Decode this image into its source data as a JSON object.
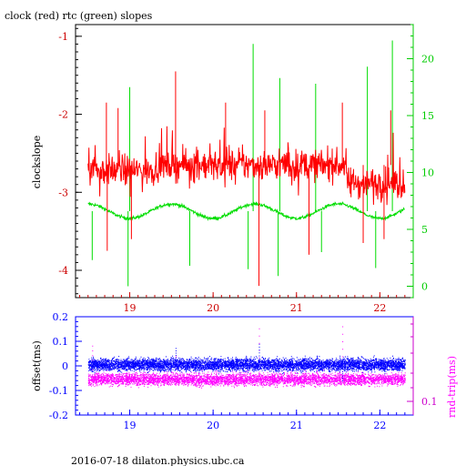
{
  "chart_data": [
    {
      "type": "line",
      "title": "clock (red) rtc (green) slopes",
      "ylabel": "clockslope",
      "y2label": "",
      "xlim": [
        18.35,
        22.4
      ],
      "ylim": [
        -4.35,
        -0.85
      ],
      "y2lim": [
        -1.0,
        23.0
      ],
      "x_ticks": [
        "19",
        "20",
        "21",
        "22"
      ],
      "x_tick_values": [
        19,
        20,
        21,
        22
      ],
      "y_ticks": [
        "-1",
        "-2",
        "-3",
        "-4"
      ],
      "y_tick_values": [
        -1,
        -2,
        -3,
        -4
      ],
      "y2_ticks": [
        "20",
        "15",
        "10",
        "5",
        "0"
      ],
      "y2_tick_values": [
        20,
        15,
        10,
        5,
        0
      ],
      "grid": false,
      "colors": {
        "clock": "#ff0000",
        "rtc": "#00dd00",
        "axis_left": "#000000",
        "axis_bottom": "#cc0000",
        "axis_right": "#00cc00"
      },
      "series": [
        {
          "key": "clock",
          "x_range": [
            18.5,
            22.3
          ],
          "samples": 760,
          "center": -2.65,
          "noise": 0.33,
          "spikes_up": [
            [
              18.72,
              -1.85
            ],
            [
              18.86,
              -1.92
            ],
            [
              19.55,
              -1.45
            ],
            [
              20.15,
              -1.85
            ],
            [
              20.62,
              -1.95
            ],
            [
              21.55,
              -1.85
            ],
            [
              22.13,
              -1.95
            ]
          ],
          "spikes_down": [
            [
              18.73,
              -3.75
            ],
            [
              19.02,
              -3.6
            ],
            [
              20.55,
              -4.2
            ],
            [
              21.15,
              -3.8
            ],
            [
              21.8,
              -3.65
            ],
            [
              22.05,
              -3.6
            ]
          ]
        },
        {
          "key": "rtc",
          "x_range": [
            18.5,
            22.3
          ],
          "samples": 760,
          "baseline": 6.6,
          "spikes_up": [
            [
              19.0,
              17.5
            ],
            [
              20.48,
              21.3
            ],
            [
              20.8,
              18.3
            ],
            [
              21.23,
              17.8
            ],
            [
              21.85,
              19.3
            ],
            [
              22.15,
              21.6
            ]
          ],
          "spikes_down": [
            [
              18.55,
              2.3
            ],
            [
              18.98,
              0.0
            ],
            [
              19.72,
              1.8
            ],
            [
              20.42,
              1.5
            ],
            [
              20.78,
              0.9
            ],
            [
              21.3,
              3.0
            ],
            [
              21.95,
              1.6
            ]
          ]
        }
      ]
    },
    {
      "type": "scatter",
      "ylabel": "offset(ms)",
      "y2label": "rnd-trip(ms)",
      "xlim": [
        18.35,
        22.4
      ],
      "ylim": [
        -0.2,
        0.2
      ],
      "x_ticks": [
        "19",
        "20",
        "21",
        "22"
      ],
      "x_tick_values": [
        19,
        20,
        21,
        22
      ],
      "y_ticks": [
        "0.2",
        "0.1",
        "0",
        "-0.1",
        "-0.2"
      ],
      "y_tick_values": [
        0.2,
        0.1,
        0,
        -0.1,
        -0.2
      ],
      "y2_ticks": [
        "0.1"
      ],
      "y2_tick_values": [
        0.1
      ],
      "grid": false,
      "colors": {
        "offset": "#0000ff",
        "rnd_trip": "#ff00ff",
        "axis_left": "#0000ff",
        "axis_bottom": "#0000ff",
        "axis_right": "#cc00cc"
      },
      "series": [
        {
          "key": "offset",
          "x_range": [
            18.5,
            22.3
          ],
          "center": 0.005,
          "spread": 0.03,
          "outliers": [
            [
              20.55,
              0.1
            ],
            [
              21.55,
              -0.07
            ],
            [
              19.55,
              0.08
            ]
          ]
        },
        {
          "key": "rnd_trip",
          "x_range": [
            18.5,
            22.3
          ],
          "center": -0.055,
          "spread": 0.03,
          "outliers": [
            [
              20.55,
              0.18
            ],
            [
              21.55,
              0.19
            ],
            [
              19.55,
              0.05
            ],
            [
              18.55,
              0.1
            ]
          ]
        }
      ]
    }
  ],
  "footer": {
    "text": "2016-07-18  dilaton.physics.ubc.ca"
  }
}
